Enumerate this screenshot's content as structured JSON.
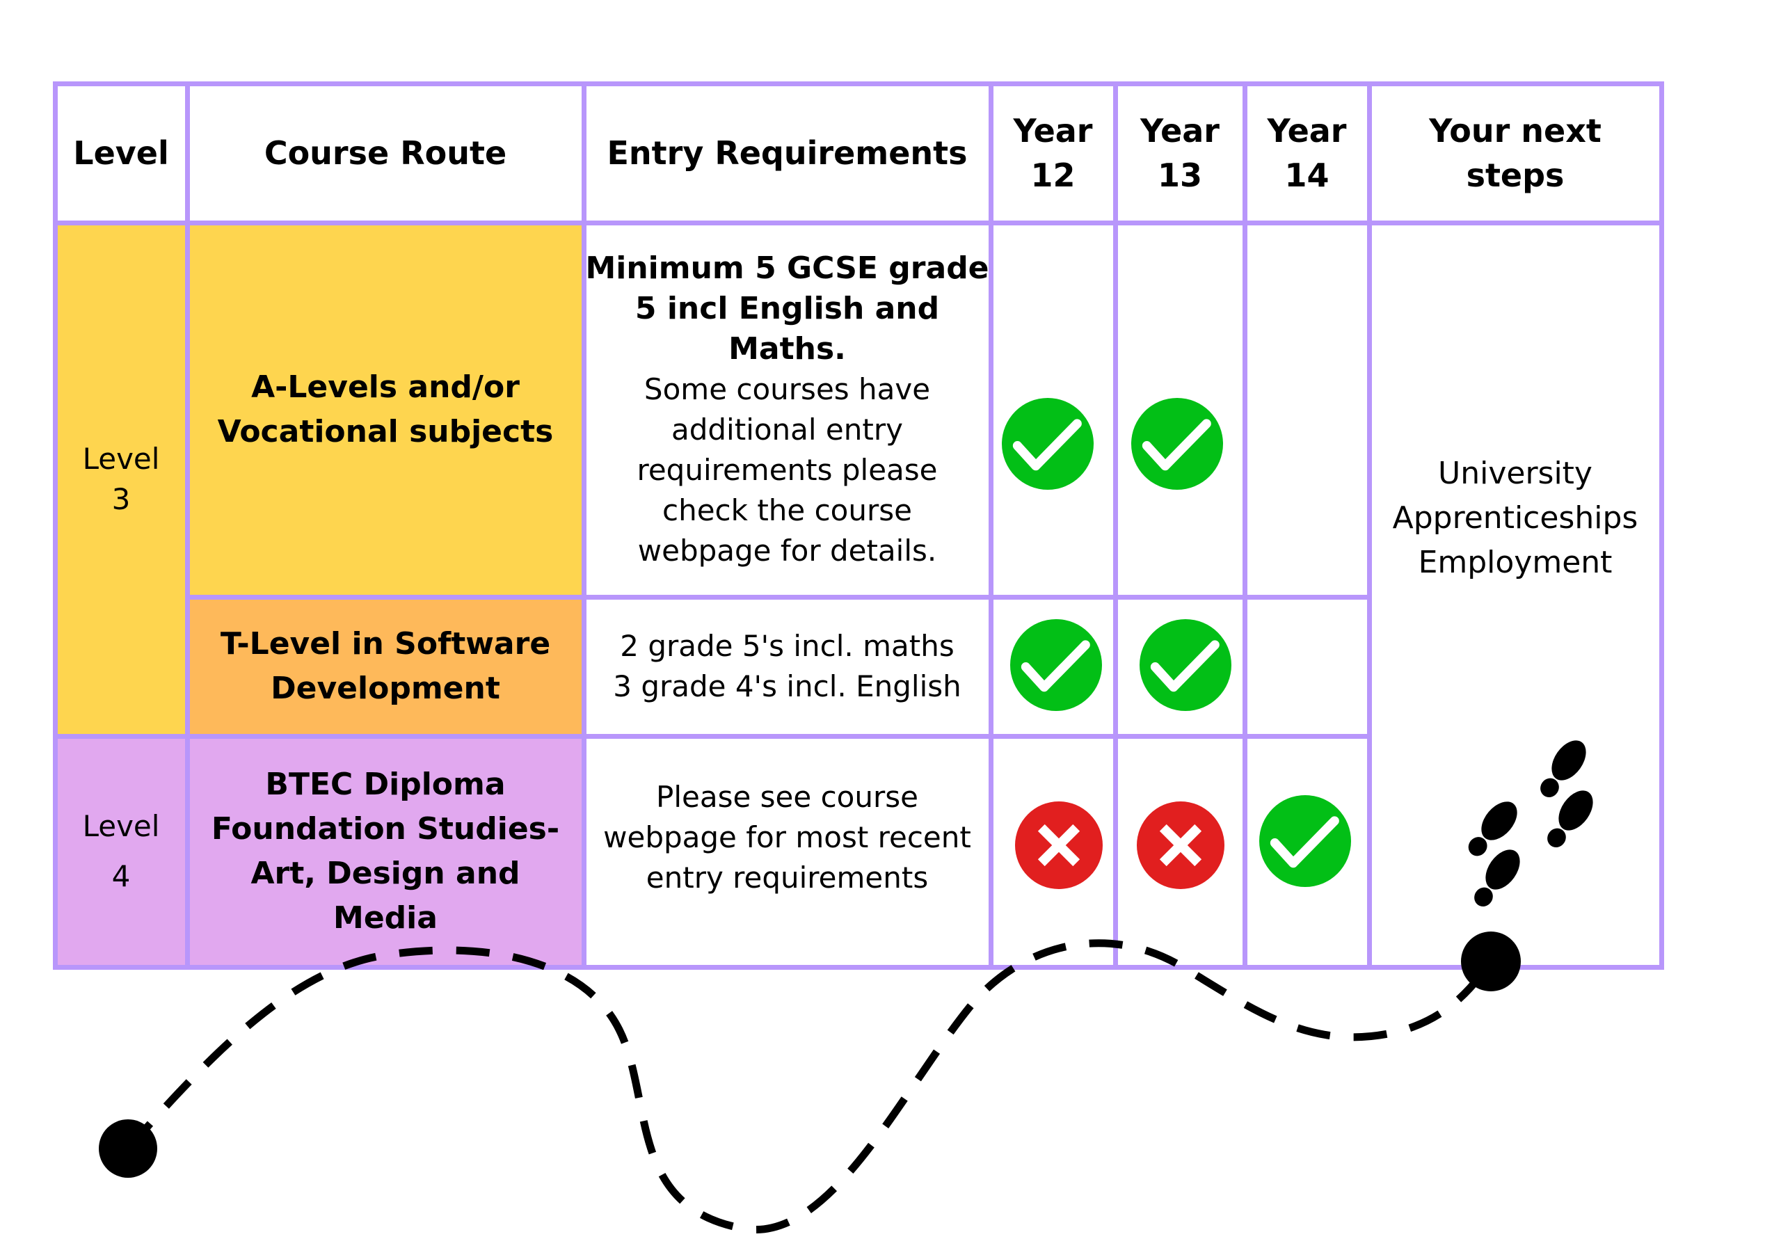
{
  "colors": {
    "border": "#b896fb",
    "level3": "#fed54f",
    "tlevel": "#feb95a",
    "level4": "#e1a8ef",
    "tick": "#02bf16",
    "cross": "#e11f1f"
  },
  "headers": {
    "level": "Level",
    "course_route": "Course Route",
    "entry": "Entry Requirements",
    "y12a": "Year",
    "y12b": "12",
    "y13a": "Year",
    "y13b": "13",
    "y14a": "Year",
    "y14b": "14",
    "nexta": "Your next",
    "nextb": "steps"
  },
  "rows": [
    {
      "level_a": "Level",
      "level_b": "3",
      "course_a": "A-Levels and/or",
      "course_b": "Vocational subjects",
      "entry_bold": [
        "Minimum 5 GCSE grade",
        "5 incl English and",
        "Maths."
      ],
      "entry": [
        "Some courses have",
        "additional entry",
        "requirements please",
        "check the course",
        "webpage for details."
      ],
      "year12": "check-icon",
      "year13": "check-icon",
      "year14": ""
    },
    {
      "course_a": "T-Level in Software",
      "course_b": "Development",
      "entry": [
        "2 grade 5's incl. maths",
        "3 grade 4's incl. English"
      ],
      "year12": "check-icon",
      "year13": "check-icon",
      "year14": ""
    },
    {
      "level_a": "Level",
      "level_b": "4",
      "course": [
        "BTEC Diploma",
        "Foundation Studies-",
        "Art, Design and",
        "Media"
      ],
      "entry": [
        "Please see course",
        "webpage for most recent",
        "entry requirements"
      ],
      "year12": "cross-icon",
      "year13": "cross-icon",
      "year14": "check-icon"
    }
  ],
  "next_steps": [
    "University",
    "Apprenticeships",
    "Employment"
  ],
  "decor": {
    "path": "dashed-journey-path",
    "footprints": "footprints-icon"
  }
}
